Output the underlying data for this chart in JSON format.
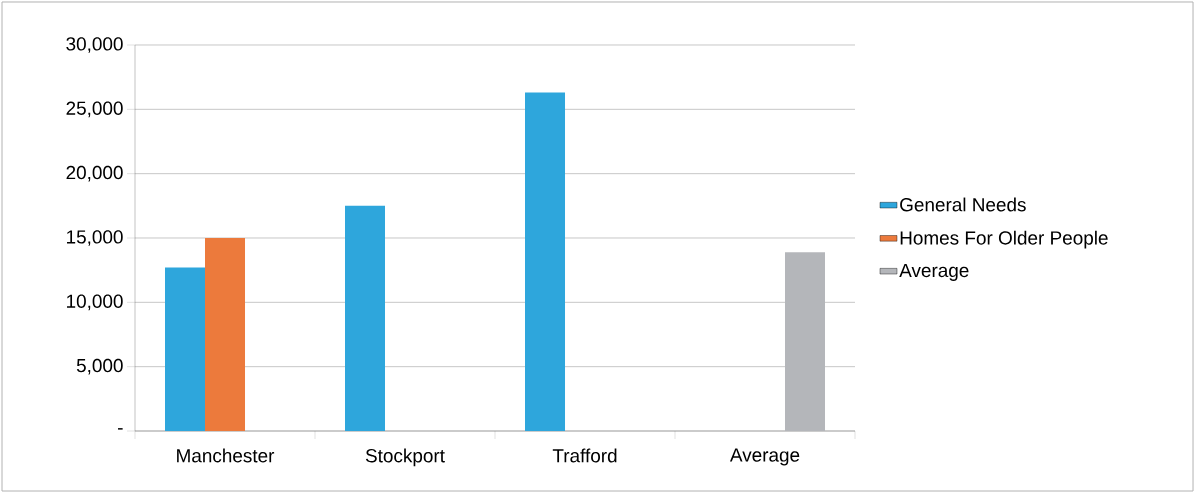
{
  "chart_data": {
    "type": "bar",
    "categories": [
      "Manchester",
      "Stockport",
      "Trafford",
      "Average"
    ],
    "series": [
      {
        "name": "General Needs",
        "color": "#2ea6dc",
        "values": [
          12700,
          17500,
          26300,
          null
        ]
      },
      {
        "name": "Homes For Older People",
        "color": "#ec7a3c",
        "values": [
          15000,
          null,
          null,
          null
        ]
      },
      {
        "name": "Average",
        "color": "#b4b6ba",
        "values": [
          null,
          null,
          null,
          13900
        ]
      }
    ],
    "ylim": [
      0,
      30000
    ],
    "yticks": [
      {
        "value": 0,
        "label": "-"
      },
      {
        "value": 5000,
        "label": "5,000"
      },
      {
        "value": 10000,
        "label": "10,000"
      },
      {
        "value": 15000,
        "label": "15,000"
      },
      {
        "value": 20000,
        "label": "20,000"
      },
      {
        "value": 25000,
        "label": "25,000"
      },
      {
        "value": 30000,
        "label": "30,000"
      }
    ],
    "grid": "y",
    "legend": "right"
  }
}
